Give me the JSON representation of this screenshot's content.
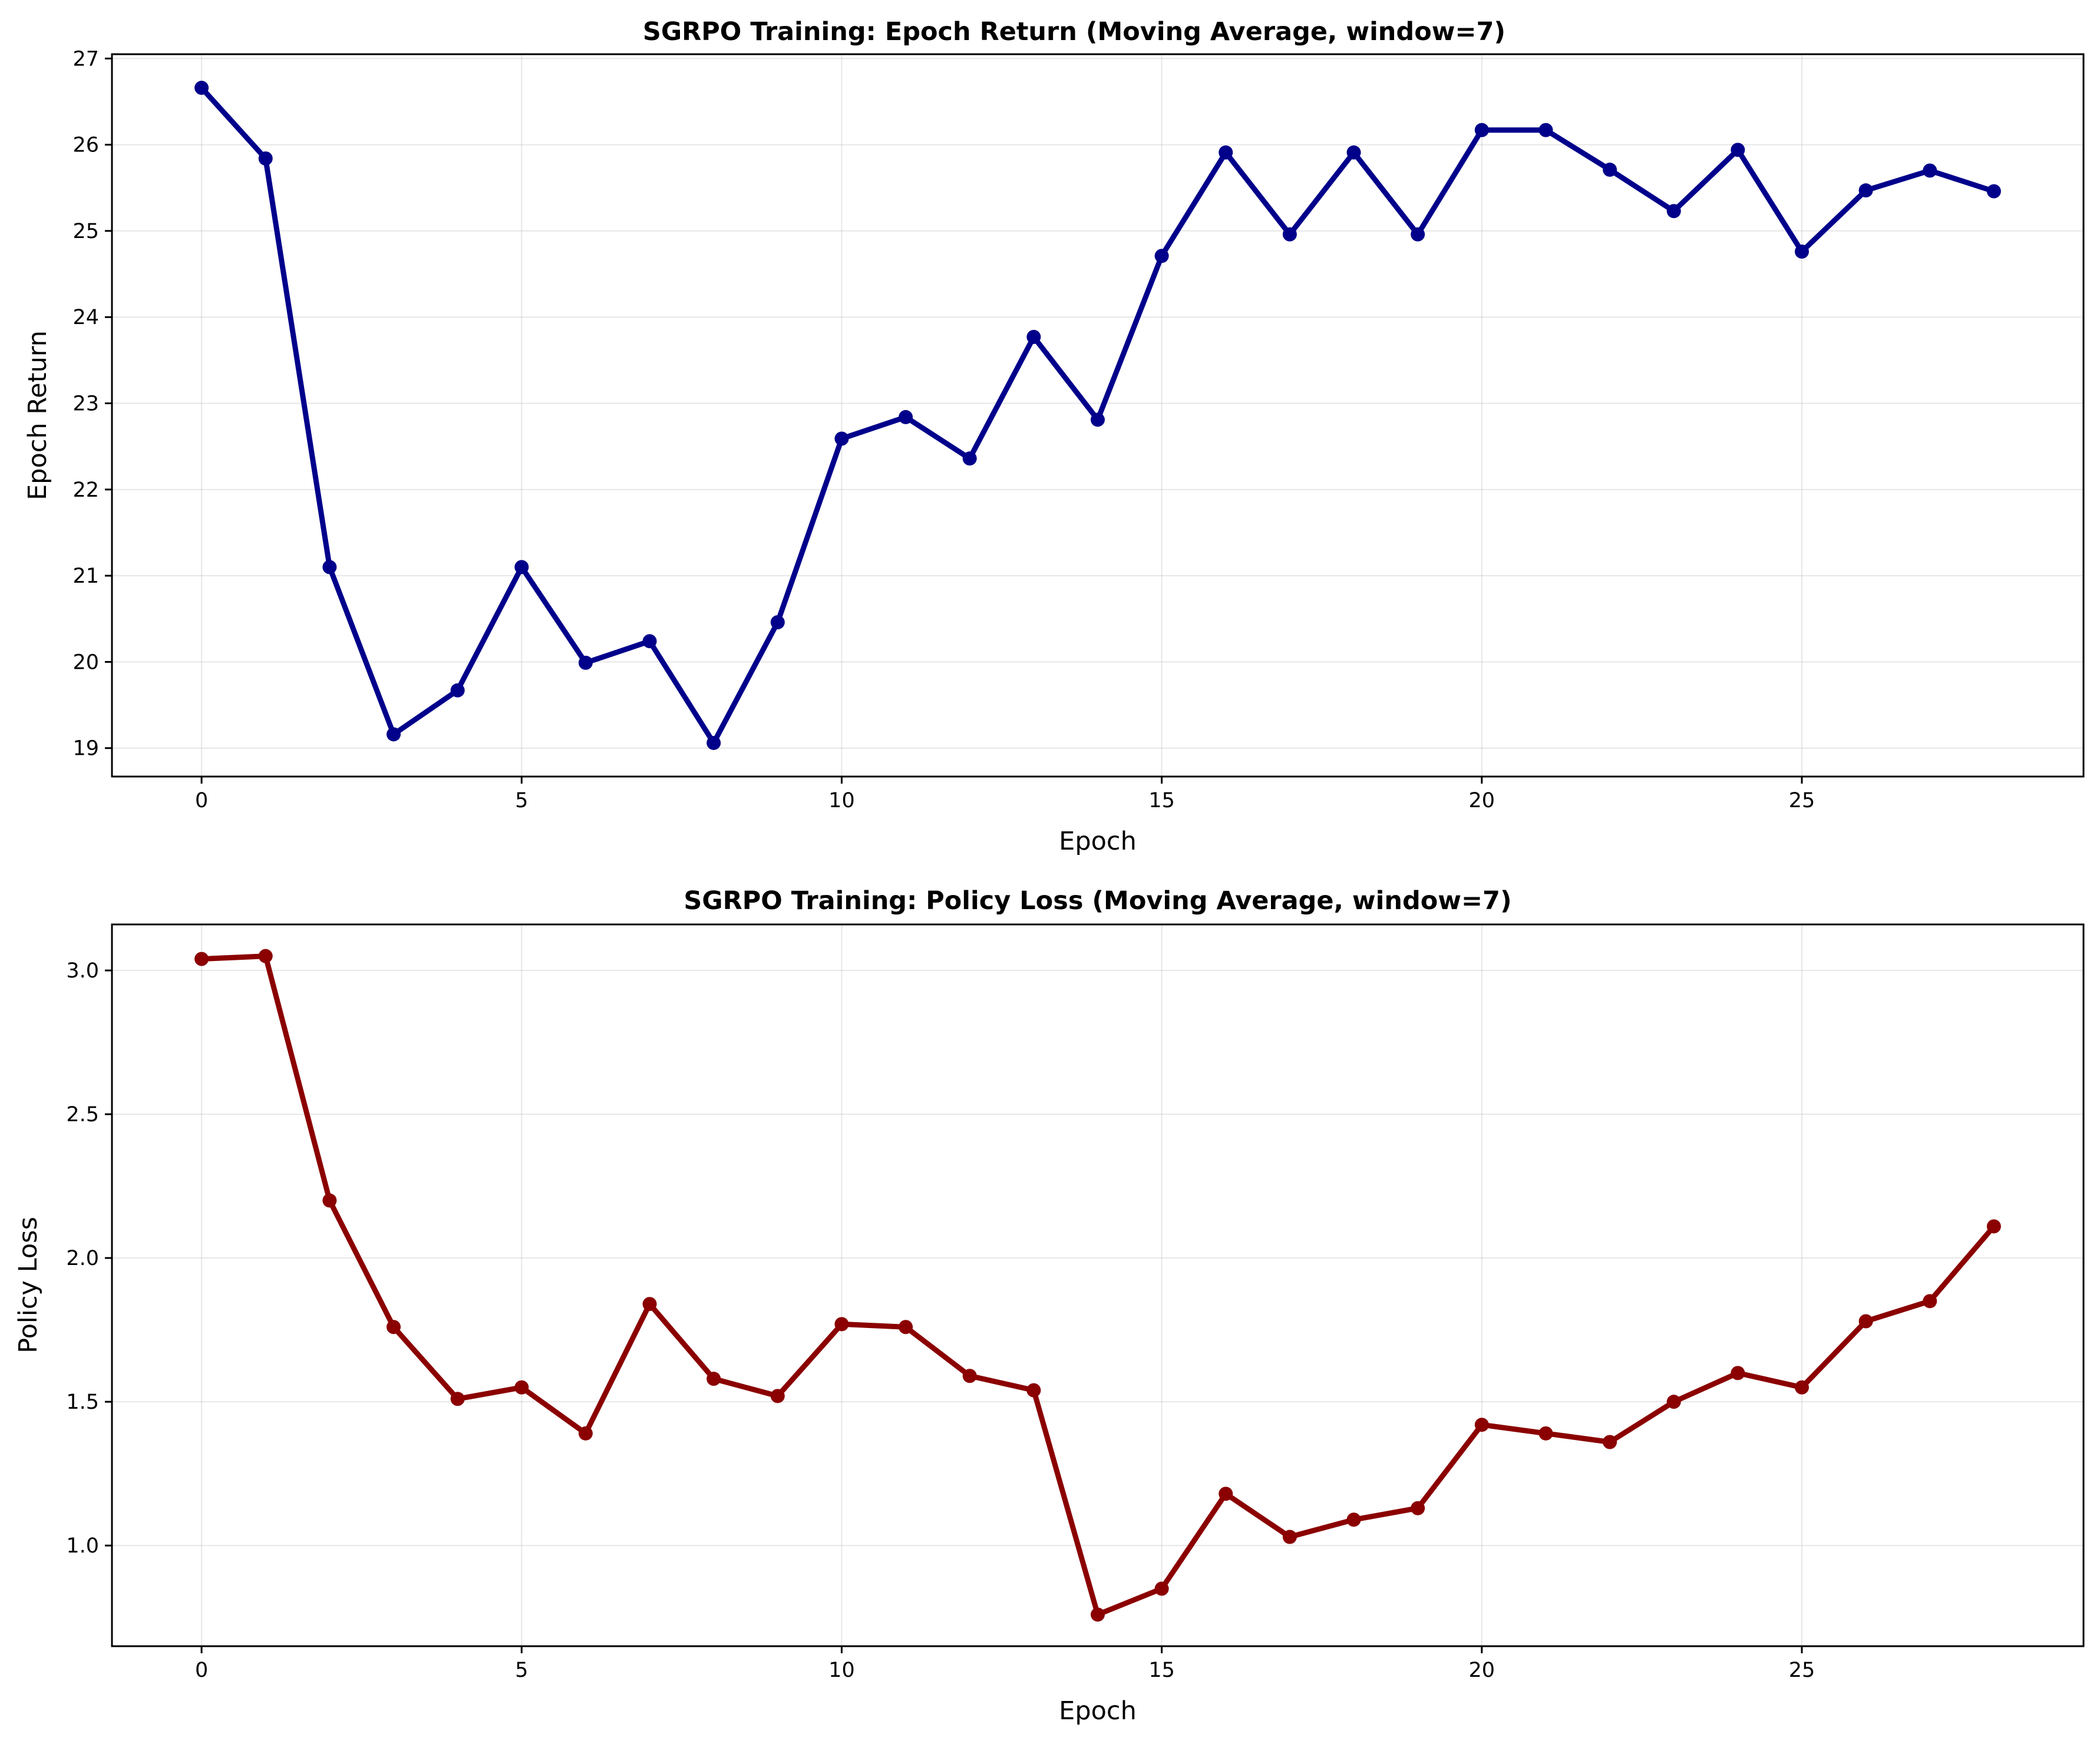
{
  "chart_data": [
    {
      "type": "line",
      "title": "SGRPO Training: Epoch Return (Moving Average, window=7)",
      "xlabel": "Epoch",
      "ylabel": "Epoch Return",
      "xlim": [
        -1.4,
        29.4
      ],
      "ylim": [
        18.67,
        27.05
      ],
      "xticks": [
        0,
        5,
        10,
        15,
        20,
        25
      ],
      "yticks": [
        19,
        20,
        21,
        22,
        23,
        24,
        25,
        26,
        27
      ],
      "tick_format": 0,
      "grid": true,
      "color": "#00008b",
      "x": [
        0,
        1,
        2,
        3,
        4,
        5,
        6,
        7,
        8,
        9,
        10,
        11,
        12,
        13,
        14,
        15,
        16,
        17,
        18,
        19,
        20,
        21,
        22,
        23,
        24,
        25,
        26,
        27,
        28
      ],
      "values": [
        26.66,
        25.84,
        21.1,
        19.16,
        19.67,
        21.1,
        19.99,
        20.24,
        19.06,
        20.46,
        22.59,
        22.84,
        22.36,
        23.77,
        22.81,
        24.71,
        25.91,
        24.96,
        25.91,
        24.96,
        26.17,
        26.17,
        25.71,
        25.23,
        25.94,
        24.76,
        25.47,
        25.7,
        25.46
      ]
    },
    {
      "type": "line",
      "title": "SGRPO Training: Policy Loss (Moving Average, window=7)",
      "xlabel": "Epoch",
      "ylabel": "Policy Loss",
      "xlim": [
        -1.4,
        29.4
      ],
      "ylim": [
        0.65,
        3.16
      ],
      "xticks": [
        0,
        5,
        10,
        15,
        20,
        25
      ],
      "yticks": [
        1.0,
        1.5,
        2.0,
        2.5,
        3.0
      ],
      "tick_format": 1,
      "grid": true,
      "color": "#8b0000",
      "x": [
        0,
        1,
        2,
        3,
        4,
        5,
        6,
        7,
        8,
        9,
        10,
        11,
        12,
        13,
        14,
        15,
        16,
        17,
        18,
        19,
        20,
        21,
        22,
        23,
        24,
        25,
        26,
        27,
        28
      ],
      "values": [
        3.04,
        3.05,
        2.2,
        1.76,
        1.51,
        1.55,
        1.39,
        1.84,
        1.58,
        1.52,
        1.77,
        1.76,
        1.59,
        1.54,
        0.76,
        0.85,
        1.18,
        1.03,
        1.09,
        1.13,
        1.42,
        1.39,
        1.36,
        1.5,
        1.6,
        1.55,
        1.78,
        1.85,
        2.11
      ]
    }
  ]
}
